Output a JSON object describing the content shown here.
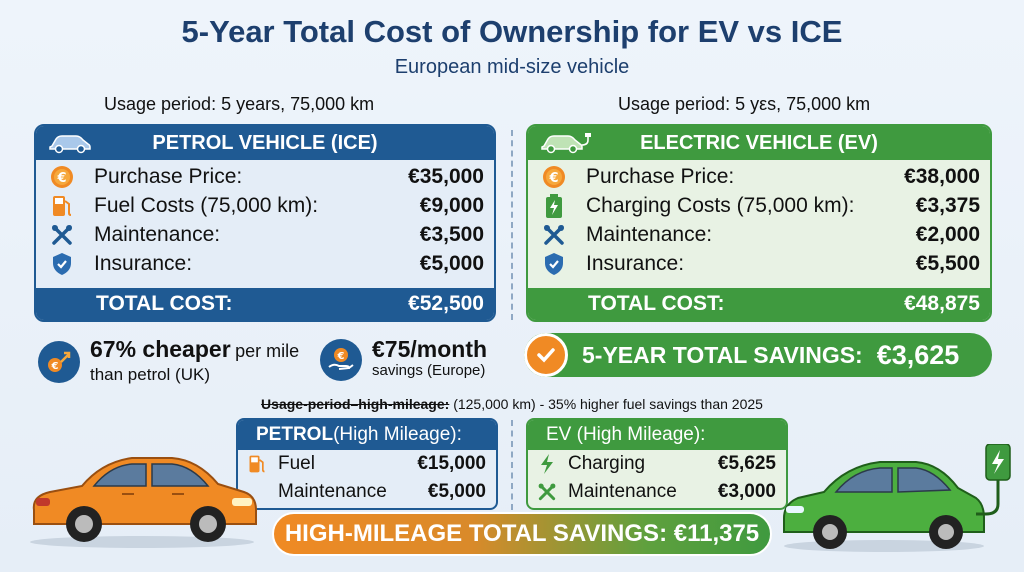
{
  "title": "5-Year Total Cost of Ownership for EV vs ICE",
  "subtitle": "European mid-size vehicle",
  "usage_left": "Usage period: 5 years, 75,000 km",
  "usage_right": "Usage period: 5 yεs, 75,000 km",
  "ice": {
    "header": "PETROL VEHICLE (ICE)",
    "rows": [
      {
        "label": "Purchase Price:",
        "value": "€35,000",
        "icon": "euro-coin-icon"
      },
      {
        "label": "Fuel Costs (75,000 km):",
        "value": "€9,000",
        "icon": "fuel-pump-icon"
      },
      {
        "label": "Maintenance:",
        "value": "€3,500",
        "icon": "wrench-icon"
      },
      {
        "label": "Insurance:",
        "value": "€5,000",
        "icon": "shield-icon"
      }
    ],
    "total_label": "TOTAL COST:",
    "total_value": "€52,500"
  },
  "ev": {
    "header": "ELECTRIC VEHICLE (EV)",
    "rows": [
      {
        "label": "Purchase Price:",
        "value": "€38,000",
        "icon": "euro-coin-icon"
      },
      {
        "label": "Charging Costs (75,000 km):",
        "value": "€3,375",
        "icon": "battery-icon"
      },
      {
        "label": "Maintenance:",
        "value": "€2,000",
        "icon": "wrench-icon"
      },
      {
        "label": "Insurance:",
        "value": "€5,500",
        "icon": "shield-icon"
      }
    ],
    "total_label": "TOTAL COST:",
    "total_value": "€48,875"
  },
  "stats": {
    "cheaper_big": "67% cheaper",
    "cheaper_rest": "per mile",
    "cheaper_line2": "than petrol (UK)",
    "month_big": "€75/month",
    "month_line2": "savings (Europe)"
  },
  "savings": {
    "label": "5-YEAR TOTAL SAVINGS:",
    "value": "€3,625"
  },
  "high_mileage": {
    "note_struck": "Usage-period–high-mileage:",
    "note_rest": " (125,000 km) - 35% higher fuel savings than 2025",
    "petrol": {
      "header_bold": "PETROL",
      "header_rest": " (High Mileage):",
      "rows": [
        {
          "label": "Fuel",
          "value": "€15,000"
        },
        {
          "label": "Maintenance",
          "value": "€5,000"
        }
      ]
    },
    "ev": {
      "header": "EV (High Mileage):",
      "rows": [
        {
          "label": "Charging",
          "value": "€5,625"
        },
        {
          "label": "Maintenance",
          "value": "€3,000"
        }
      ]
    },
    "total": "HIGH-MILEAGE TOTAL SAVINGS: €11,375"
  },
  "colors": {
    "ice_blue": "#1f5a93",
    "ev_green": "#3f9a3f",
    "accent_orange": "#f08a24",
    "title_navy": "#1d3f6e"
  }
}
